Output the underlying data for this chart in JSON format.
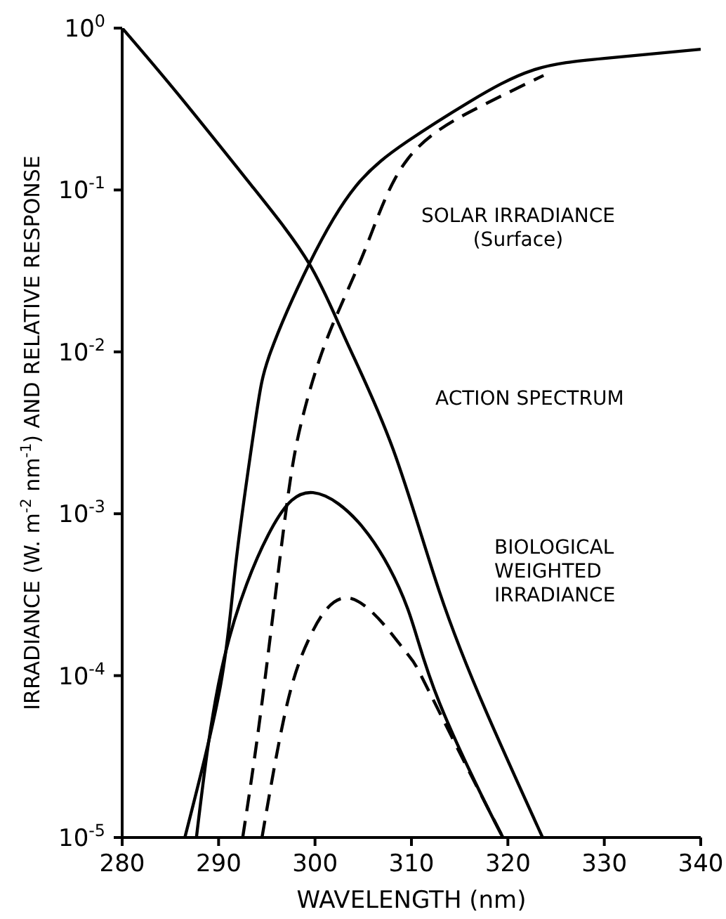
{
  "chart_data": {
    "type": "line",
    "xlabel": "WAVELENGTH (nm)",
    "ylabel": "IRRADIANCE (W. m$^{-2}$ nm$^{-1}$) AND RELATIVE RESPONSE",
    "log": "y",
    "xlim": [
      280,
      340
    ],
    "xticks": [
      280,
      290,
      300,
      310,
      320,
      330,
      340
    ],
    "ylim": [
      1e-05,
      1
    ],
    "yticks": [
      {
        "value": 1,
        "label": "10$^{0}$"
      },
      {
        "value": 0.1,
        "label": "10$^{-1}$"
      },
      {
        "value": 0.01,
        "label": "10$^{-2}$"
      },
      {
        "value": 0.001,
        "label": "10$^{-3}$"
      },
      {
        "value": 0.0001,
        "label": "10$^{-4}$"
      },
      {
        "value": 1e-05,
        "label": "10$^{-5}$"
      }
    ],
    "marker": "none",
    "series": [
      {
        "color": "#000000",
        "line_style": "solid",
        "x": [
          280,
          285.8,
          293.5,
          299.4,
          303.3,
          308.1,
          312.9,
          317.8,
          323.6
        ],
        "values": [
          1,
          0.39,
          0.105,
          0.035,
          0.0115,
          0.0025,
          0.00033,
          5.9e-05,
          1e-05
        ]
      },
      {
        "color": "#000000",
        "line_style": "solid",
        "x": [
          286.5,
          290.2,
          291.8,
          293.8,
          295.4,
          299.4,
          304.2,
          309.6,
          316,
          322.6,
          330,
          340
        ],
        "values": [
          1e-05,
          8.7e-05,
          0.0005,
          0.0037,
          0.01,
          0.035,
          0.105,
          0.2,
          0.35,
          0.55,
          0.65,
          0.74
        ]
      },
      {
        "color": "#000000",
        "line_style": "dashed",
        "x": [
          292.5,
          294.5,
          296.9,
          298.6,
          301.3,
          305.2,
          309.6,
          316.8,
          323.7
        ],
        "values": [
          1e-05,
          6.8e-05,
          0.00095,
          0.0037,
          0.0123,
          0.043,
          0.155,
          0.32,
          0.51
        ]
      },
      {
        "color": "#000000",
        "line_style": "solid",
        "x": [
          287.7,
          290.6,
          295.4,
          299.8,
          305.2,
          309.6,
          312.9,
          319.3,
          320
        ],
        "values": [
          1e-05,
          0.00013,
          0.00079,
          0.00135,
          0.00079,
          0.00026,
          6.8e-05,
          1.05e-05,
          1e-05
        ]
      },
      {
        "color": "#000000",
        "line_style": "dashed",
        "x": [
          294.5,
          296.9,
          299.4,
          303.7,
          309.1,
          311,
          315.4,
          319.5
        ],
        "values": [
          1e-05,
          5.9e-05,
          0.00017,
          0.0003,
          0.000148,
          0.0001,
          3e-05,
          1e-05
        ]
      }
    ],
    "annotations": [
      "SOLAR IRRADIANCE\n(Surface)",
      "ACTION SPECTRUM",
      "BIOLOGICAL\nWEIGHTED\nIRRADIANCE"
    ]
  }
}
